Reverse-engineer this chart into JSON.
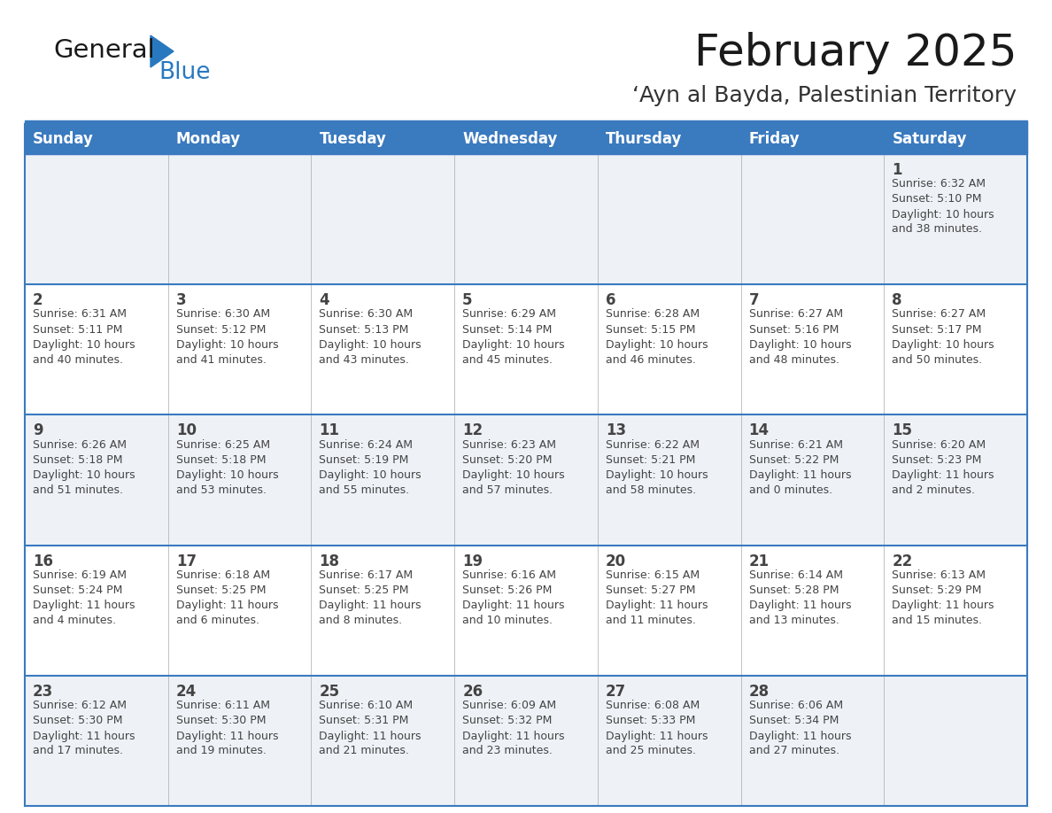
{
  "title": "February 2025",
  "subtitle": "‘Ayn al Bayda, Palestinian Territory",
  "days_of_week": [
    "Sunday",
    "Monday",
    "Tuesday",
    "Wednesday",
    "Thursday",
    "Friday",
    "Saturday"
  ],
  "header_bg": "#3a7abf",
  "header_text": "#ffffff",
  "cell_bg_odd": "#eef2f7",
  "cell_bg_even": "#ffffff",
  "border_color": "#3a7abf",
  "text_color": "#444444",
  "title_color": "#1a1a1a",
  "subtitle_color": "#333333",
  "logo_general_color": "#1a1a1a",
  "logo_blue_color": "#2878c0",
  "calendar_data": [
    [
      null,
      null,
      null,
      null,
      null,
      null,
      {
        "day": 1,
        "sunrise": "6:32 AM",
        "sunset": "5:10 PM",
        "daylight": "10 hours and 38 minutes"
      }
    ],
    [
      {
        "day": 2,
        "sunrise": "6:31 AM",
        "sunset": "5:11 PM",
        "daylight": "10 hours and 40 minutes"
      },
      {
        "day": 3,
        "sunrise": "6:30 AM",
        "sunset": "5:12 PM",
        "daylight": "10 hours and 41 minutes"
      },
      {
        "day": 4,
        "sunrise": "6:30 AM",
        "sunset": "5:13 PM",
        "daylight": "10 hours and 43 minutes"
      },
      {
        "day": 5,
        "sunrise": "6:29 AM",
        "sunset": "5:14 PM",
        "daylight": "10 hours and 45 minutes"
      },
      {
        "day": 6,
        "sunrise": "6:28 AM",
        "sunset": "5:15 PM",
        "daylight": "10 hours and 46 minutes"
      },
      {
        "day": 7,
        "sunrise": "6:27 AM",
        "sunset": "5:16 PM",
        "daylight": "10 hours and 48 minutes"
      },
      {
        "day": 8,
        "sunrise": "6:27 AM",
        "sunset": "5:17 PM",
        "daylight": "10 hours and 50 minutes"
      }
    ],
    [
      {
        "day": 9,
        "sunrise": "6:26 AM",
        "sunset": "5:18 PM",
        "daylight": "10 hours and 51 minutes"
      },
      {
        "day": 10,
        "sunrise": "6:25 AM",
        "sunset": "5:18 PM",
        "daylight": "10 hours and 53 minutes"
      },
      {
        "day": 11,
        "sunrise": "6:24 AM",
        "sunset": "5:19 PM",
        "daylight": "10 hours and 55 minutes"
      },
      {
        "day": 12,
        "sunrise": "6:23 AM",
        "sunset": "5:20 PM",
        "daylight": "10 hours and 57 minutes"
      },
      {
        "day": 13,
        "sunrise": "6:22 AM",
        "sunset": "5:21 PM",
        "daylight": "10 hours and 58 minutes"
      },
      {
        "day": 14,
        "sunrise": "6:21 AM",
        "sunset": "5:22 PM",
        "daylight": "11 hours and 0 minutes"
      },
      {
        "day": 15,
        "sunrise": "6:20 AM",
        "sunset": "5:23 PM",
        "daylight": "11 hours and 2 minutes"
      }
    ],
    [
      {
        "day": 16,
        "sunrise": "6:19 AM",
        "sunset": "5:24 PM",
        "daylight": "11 hours and 4 minutes"
      },
      {
        "day": 17,
        "sunrise": "6:18 AM",
        "sunset": "5:25 PM",
        "daylight": "11 hours and 6 minutes"
      },
      {
        "day": 18,
        "sunrise": "6:17 AM",
        "sunset": "5:25 PM",
        "daylight": "11 hours and 8 minutes"
      },
      {
        "day": 19,
        "sunrise": "6:16 AM",
        "sunset": "5:26 PM",
        "daylight": "11 hours and 10 minutes"
      },
      {
        "day": 20,
        "sunrise": "6:15 AM",
        "sunset": "5:27 PM",
        "daylight": "11 hours and 11 minutes"
      },
      {
        "day": 21,
        "sunrise": "6:14 AM",
        "sunset": "5:28 PM",
        "daylight": "11 hours and 13 minutes"
      },
      {
        "day": 22,
        "sunrise": "6:13 AM",
        "sunset": "5:29 PM",
        "daylight": "11 hours and 15 minutes"
      }
    ],
    [
      {
        "day": 23,
        "sunrise": "6:12 AM",
        "sunset": "5:30 PM",
        "daylight": "11 hours and 17 minutes"
      },
      {
        "day": 24,
        "sunrise": "6:11 AM",
        "sunset": "5:30 PM",
        "daylight": "11 hours and 19 minutes"
      },
      {
        "day": 25,
        "sunrise": "6:10 AM",
        "sunset": "5:31 PM",
        "daylight": "11 hours and 21 minutes"
      },
      {
        "day": 26,
        "sunrise": "6:09 AM",
        "sunset": "5:32 PM",
        "daylight": "11 hours and 23 minutes"
      },
      {
        "day": 27,
        "sunrise": "6:08 AM",
        "sunset": "5:33 PM",
        "daylight": "11 hours and 25 minutes"
      },
      {
        "day": 28,
        "sunrise": "6:06 AM",
        "sunset": "5:34 PM",
        "daylight": "11 hours and 27 minutes"
      },
      null
    ]
  ],
  "figsize": [
    11.88,
    9.18
  ],
  "dpi": 100
}
